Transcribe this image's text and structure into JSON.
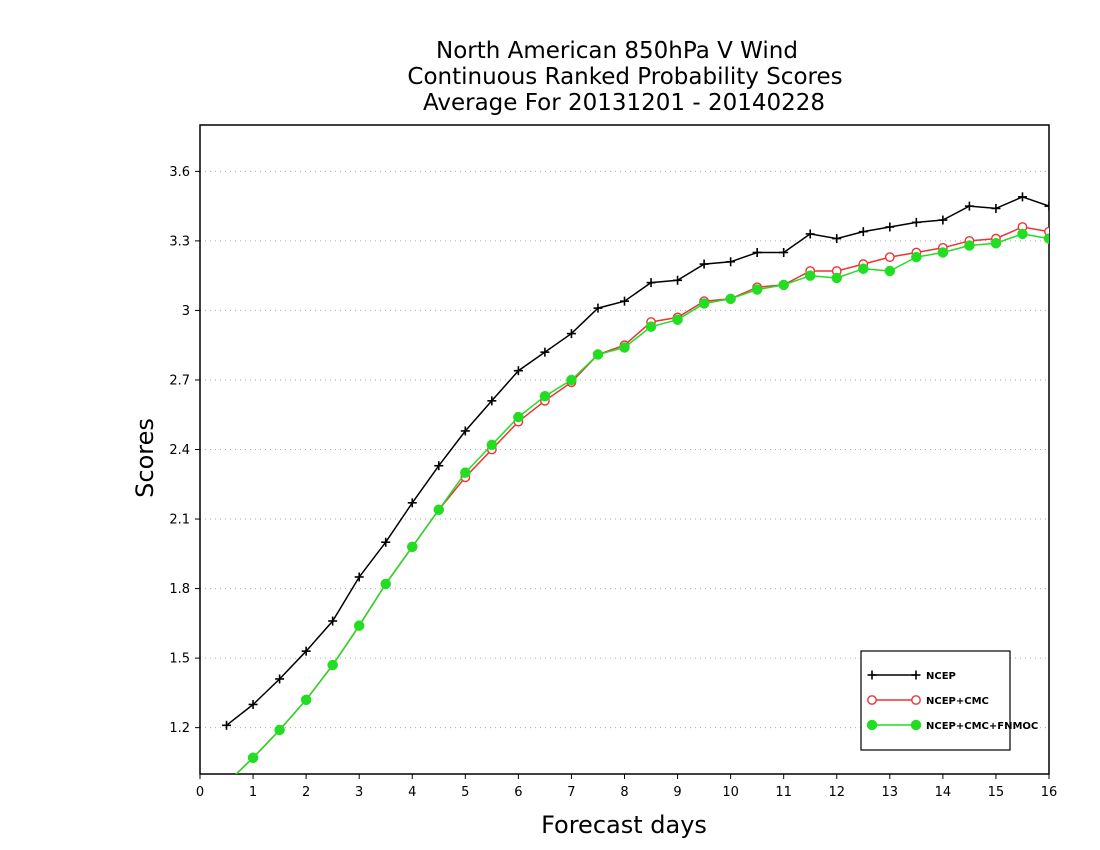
{
  "chart_data": {
    "type": "line",
    "title": [
      "North American 850hPa V Wind",
      "Continuous Ranked Probability Scores",
      "Average For 20131201 - 20140228"
    ],
    "xlabel": "Forecast days",
    "ylabel": "Scores",
    "xlim": [
      0,
      16
    ],
    "ylim": [
      1.0,
      3.8
    ],
    "xticks": [
      "0",
      "1",
      "2",
      "3",
      "4",
      "5",
      "6",
      "7",
      "8",
      "9",
      "10",
      "11",
      "12",
      "13",
      "14",
      "15",
      "16"
    ],
    "yticks": [
      "1.2",
      "1.5",
      "1.8",
      "2.1",
      "2.4",
      "2.7",
      "3",
      "3.3",
      "3.6"
    ],
    "grid": "horizontal dotted",
    "legend_position": "bottom-right",
    "x": [
      0.5,
      1,
      1.5,
      2,
      2.5,
      3,
      3.5,
      4,
      4.5,
      5,
      5.5,
      6,
      6.5,
      7,
      7.5,
      8,
      8.5,
      9,
      9.5,
      10,
      10.5,
      11,
      11.5,
      12,
      12.5,
      13,
      13.5,
      14,
      14.5,
      15,
      15.5,
      16
    ],
    "series": [
      {
        "name": "NCEP",
        "color": "#000000",
        "marker": "plus",
        "values": [
          1.21,
          1.3,
          1.41,
          1.53,
          1.66,
          1.85,
          2.0,
          2.17,
          2.33,
          2.48,
          2.61,
          2.74,
          2.82,
          2.9,
          3.01,
          3.04,
          3.12,
          3.13,
          3.2,
          3.21,
          3.25,
          3.25,
          3.33,
          3.31,
          3.34,
          3.36,
          3.38,
          3.39,
          3.45,
          3.44,
          3.49,
          3.45
        ]
      },
      {
        "name": "NCEP+CMC",
        "color": "#ee3333",
        "marker": "open-circle",
        "values": [
          0.96,
          1.07,
          1.19,
          1.32,
          1.47,
          1.64,
          1.82,
          1.98,
          2.14,
          2.28,
          2.4,
          2.52,
          2.61,
          2.69,
          2.81,
          2.85,
          2.95,
          2.97,
          3.04,
          3.05,
          3.1,
          3.11,
          3.17,
          3.17,
          3.2,
          3.23,
          3.25,
          3.27,
          3.3,
          3.31,
          3.36,
          3.34
        ]
      },
      {
        "name": "NCEP+CMC+FNMOC",
        "color": "#22dd22",
        "marker": "filled-circle",
        "values": [
          0.96,
          1.07,
          1.19,
          1.32,
          1.47,
          1.64,
          1.82,
          1.98,
          2.14,
          2.3,
          2.42,
          2.54,
          2.63,
          2.7,
          2.81,
          2.84,
          2.93,
          2.96,
          3.03,
          3.05,
          3.09,
          3.11,
          3.15,
          3.14,
          3.18,
          3.17,
          3.23,
          3.25,
          3.28,
          3.29,
          3.33,
          3.31
        ]
      }
    ]
  }
}
